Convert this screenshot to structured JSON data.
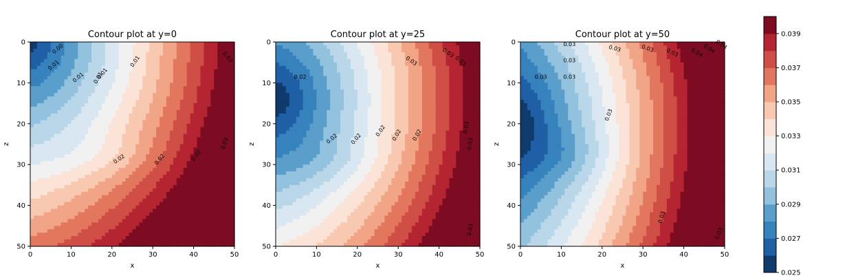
{
  "chart_data": [
    {
      "type": "contour",
      "title": "Contour plot at y=0",
      "xlabel": "x",
      "ylabel": "z",
      "xlim": [
        0,
        50
      ],
      "ylim": [
        50,
        0
      ],
      "xticks": [
        "0",
        "10",
        "20",
        "30",
        "40",
        "50"
      ],
      "yticks": [
        "0",
        "10",
        "20",
        "30",
        "40",
        "50"
      ],
      "contour_labels": [
        "0.00",
        "0.01",
        "0.01",
        "0.01",
        "0.01",
        "0.01",
        "0.02",
        "0.02",
        "0.02",
        "0.03",
        "0.03"
      ]
    },
    {
      "type": "contour",
      "title": "Contour plot at y=25",
      "xlabel": "x",
      "ylabel": "z",
      "xlim": [
        0,
        50
      ],
      "ylim": [
        50,
        0
      ],
      "xticks": [
        "0",
        "10",
        "20",
        "30",
        "40",
        "50"
      ],
      "yticks": [
        "0",
        "10",
        "20",
        "30",
        "40",
        "50"
      ],
      "contour_labels": [
        "0.02",
        "0.02",
        "0.02",
        "0.02",
        "0.02",
        "0.02",
        "0.03",
        "0.03",
        "0.03",
        "0.03",
        "0.03",
        "0.03"
      ]
    },
    {
      "type": "contour",
      "title": "Contour plot at y=50",
      "xlabel": "x",
      "ylabel": "z",
      "xlim": [
        0,
        50
      ],
      "ylim": [
        50,
        0
      ],
      "xticks": [
        "0",
        "10",
        "20",
        "30",
        "40",
        "50"
      ],
      "yticks": [
        "0",
        "10",
        "20",
        "30",
        "40",
        "50"
      ],
      "contour_labels": [
        "0.03",
        "0.03",
        "0.03",
        "0.03",
        "0.03",
        "0.03",
        "0.03",
        "0.04",
        "0.04",
        "0.04",
        "0.03",
        "0.03",
        "0.03"
      ]
    }
  ],
  "colorbar": {
    "levels": [
      0.025,
      0.026,
      0.027,
      0.028,
      0.029,
      0.03,
      0.031,
      0.032,
      0.033,
      0.034,
      0.035,
      0.036,
      0.037,
      0.038,
      0.039,
      0.04
    ],
    "tick_labels": [
      "0.025",
      "0.027",
      "0.029",
      "0.031",
      "0.033",
      "0.035",
      "0.037",
      "0.039"
    ],
    "colors": [
      "#0f3b6c",
      "#1f5fa5",
      "#3682bd",
      "#5a9ecb",
      "#92c2de",
      "#b9d7e8",
      "#d8e7f1",
      "#f1f1f1",
      "#fbe4d7",
      "#f8c8b0",
      "#f1a486",
      "#e2775e",
      "#cf4e45",
      "#b52531",
      "#7d0c22"
    ]
  }
}
